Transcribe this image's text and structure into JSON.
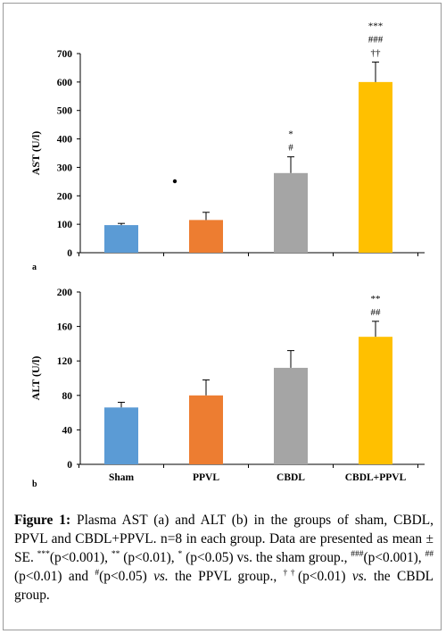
{
  "chart_data": [
    {
      "type": "bar",
      "panel_label": "a",
      "ylabel": "AST (U/l)",
      "ylim": [
        0,
        700
      ],
      "yticks": [
        0,
        100,
        200,
        300,
        400,
        500,
        600,
        700
      ],
      "categories": [
        "Sham",
        "PPVL",
        "CBDL",
        "CBDL+PPVL"
      ],
      "values": [
        97,
        115,
        280,
        600
      ],
      "errors": [
        6,
        27,
        57,
        70
      ],
      "colors": [
        "#5b9bd5",
        "#ed7d31",
        "#a5a5a5",
        "#ffc000"
      ],
      "annotations": [
        [],
        [
          "•"
        ],
        [
          "*",
          "#"
        ],
        [
          "***",
          "###",
          "††"
        ]
      ],
      "show_category_labels": false,
      "grid": false
    },
    {
      "type": "bar",
      "panel_label": "b",
      "ylabel": "ALT (U/l)",
      "ylim": [
        0,
        200
      ],
      "yticks": [
        0,
        40,
        80,
        120,
        160,
        200
      ],
      "categories": [
        "Sham",
        "PPVL",
        "CBDL",
        "CBDL+PPVL"
      ],
      "values": [
        66,
        80,
        112,
        148
      ],
      "errors": [
        6,
        18,
        20,
        18
      ],
      "colors": [
        "#5b9bd5",
        "#ed7d31",
        "#a5a5a5",
        "#ffc000"
      ],
      "annotations": [
        [],
        [],
        [],
        [
          "**",
          "##"
        ]
      ],
      "show_category_labels": true,
      "grid": false
    }
  ],
  "caption": {
    "figure_label": "Figure 1:",
    "p1": " Plasma AST (a) and ALT (b) in the groups of sham, CBDL, PPVL and CBDL+PPVL. n=8 in each group. Data are presented as mean ± SE. ",
    "sup1": "***",
    "p2": "(p<0.001), ",
    "sup2": "**",
    "p3": " (p<0.01), ",
    "sup3": "*",
    "p4": " (p<0.05) vs. the sham group., ",
    "sup4": "###",
    "p5": "(p<0.001), ",
    "sup5": "##",
    "p6": "(p<0.01) and ",
    "sup6": "#",
    "p7": "(p<0.05) ",
    "vs1": "vs.",
    "p8": " the PPVL group., ",
    "sup7": "††",
    "p9": "(p<0.01) ",
    "vs2": "vs.",
    "p10": " the CBDL group."
  }
}
